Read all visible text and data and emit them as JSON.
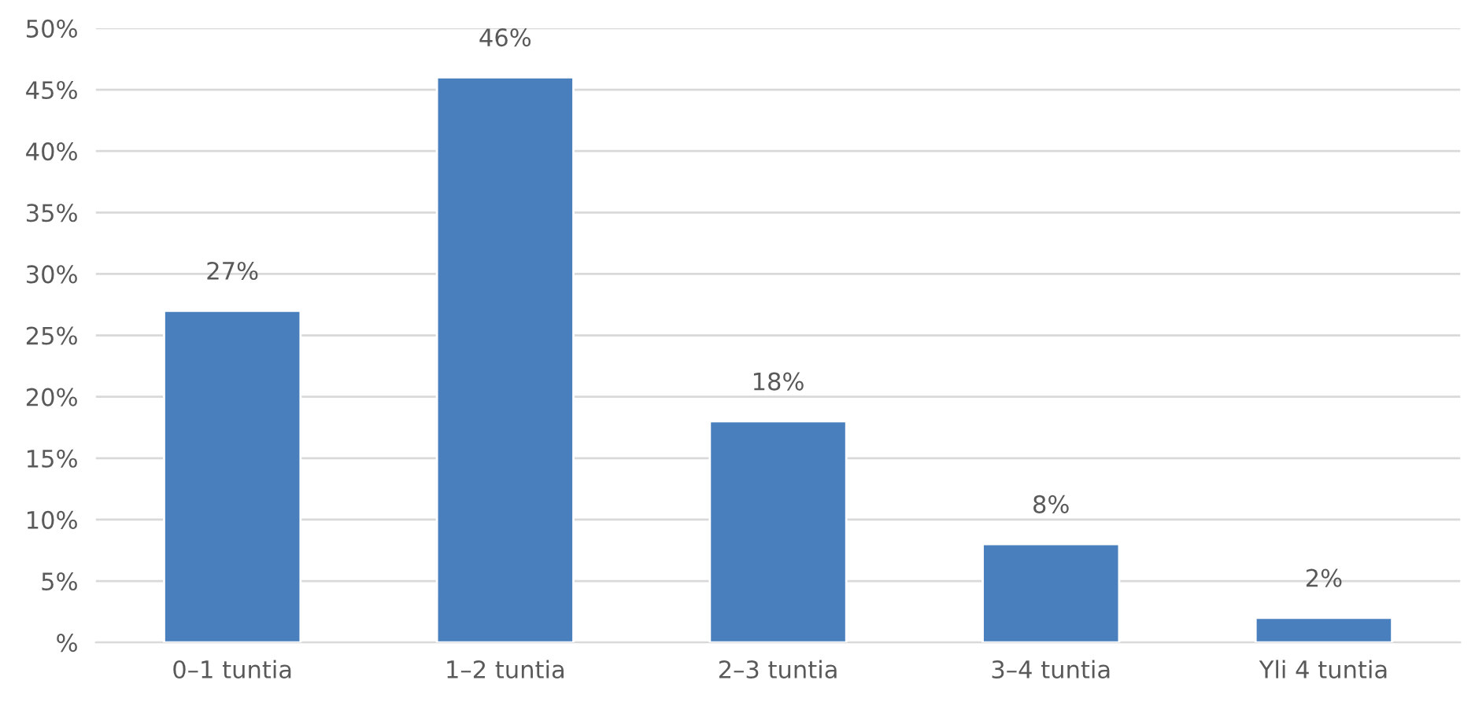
{
  "chart_data": {
    "type": "bar",
    "categories": [
      "0–1 tuntia",
      "1–2 tuntia",
      "2–3 tuntia",
      "3–4 tuntia",
      "Yli 4 tuntia"
    ],
    "values": [
      27,
      46,
      18,
      8,
      2
    ],
    "value_labels": [
      "27%",
      "46%",
      "18%",
      "8%",
      "2%"
    ],
    "color": "#4a7fbd",
    "ylim": [
      0,
      50
    ],
    "yticks": [
      {
        "value": 0,
        "label": "%"
      },
      {
        "value": 5,
        "label": "5%"
      },
      {
        "value": 10,
        "label": "10%"
      },
      {
        "value": 15,
        "label": "15%"
      },
      {
        "value": 20,
        "label": "20%"
      },
      {
        "value": 25,
        "label": "25%"
      },
      {
        "value": 30,
        "label": "30%"
      },
      {
        "value": 35,
        "label": "35%"
      },
      {
        "value": 40,
        "label": "40%"
      },
      {
        "value": 45,
        "label": "45%"
      },
      {
        "value": 50,
        "label": "50%"
      }
    ],
    "grid": "y",
    "legend": false
  }
}
